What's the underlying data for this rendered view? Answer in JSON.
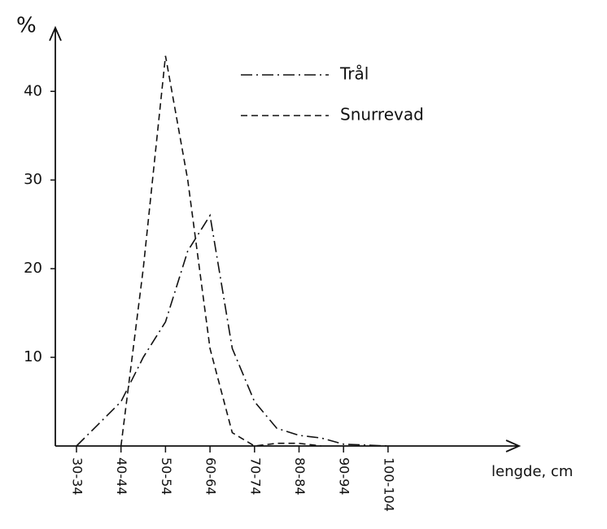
{
  "chart_data": {
    "type": "line",
    "y_label": "%",
    "x_label": "lengde, cm",
    "categories": [
      "30-34",
      null,
      "40-44",
      null,
      "50-54",
      null,
      "60-64",
      null,
      "70-74",
      null,
      "80-84",
      null,
      "90-94",
      null,
      "100-104"
    ],
    "series": [
      {
        "name": "Trål",
        "color": "#111111",
        "linestyle": "dashdot",
        "values": [
          0,
          2.5,
          5,
          10,
          14,
          22,
          26,
          11,
          5,
          2,
          1.2,
          0.9,
          0.2,
          0.1,
          0
        ]
      },
      {
        "name": "Snurrevad",
        "color": "#111111",
        "linestyle": "dashed",
        "values": [
          null,
          null,
          0,
          20,
          44,
          30,
          11,
          1.5,
          0,
          0.3,
          0.3,
          0,
          null,
          null,
          null
        ]
      }
    ],
    "ylim": [
      0,
      47
    ],
    "yticks": [
      10,
      20,
      30,
      40
    ],
    "grid": false
  }
}
